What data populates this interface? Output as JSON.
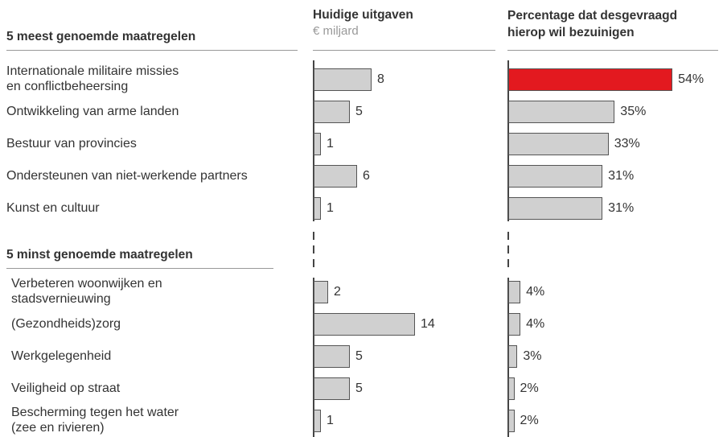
{
  "sections": [
    {
      "title": "5 meest genoemde maatregelen"
    },
    {
      "title": "5 minst genoemde maatregelen"
    }
  ],
  "chart_data": [
    {
      "type": "hbar",
      "title": "Huidige uitgaven",
      "subtitle": "€ miljard",
      "categories": [
        "Internationale militaire missies\nen conflictbeheersing",
        "Ontwikkeling van arme landen",
        "Bestuur van provincies",
        "Ondersteunen van niet-werkende partners",
        "Kunst en cultuur",
        "Verbeteren woonwijken en\nstadsvernieuwing",
        "(Gezondheids)zorg",
        "Werkgelegenheid",
        "Veiligheid op straat",
        "Bescherming tegen het water\n(zee en rivieren)"
      ],
      "values": [
        8,
        5,
        1,
        6,
        1,
        2,
        14,
        5,
        5,
        1
      ],
      "colors": [
        "#d0d0d0",
        "#d0d0d0",
        "#d0d0d0",
        "#d0d0d0",
        "#d0d0d0",
        "#d0d0d0",
        "#d0d0d0",
        "#d0d0d0",
        "#d0d0d0",
        "#d0d0d0"
      ]
    },
    {
      "type": "hbar",
      "title": "Percentage dat desgevraagd\nhierop wil bezuinigen",
      "values": [
        54,
        35,
        33,
        31,
        31,
        4,
        4,
        3,
        2,
        2
      ],
      "value_labels": [
        "54%",
        "35%",
        "33%",
        "31%",
        "31%",
        "4%",
        "4%",
        "3%",
        "2%",
        "2%"
      ],
      "colors": [
        "#e3191f",
        "#d0d0d0",
        "#d0d0d0",
        "#d0d0d0",
        "#d0d0d0",
        "#d0d0d0",
        "#d0d0d0",
        "#d0d0d0",
        "#d0d0d0",
        "#d0d0d0"
      ]
    }
  ]
}
